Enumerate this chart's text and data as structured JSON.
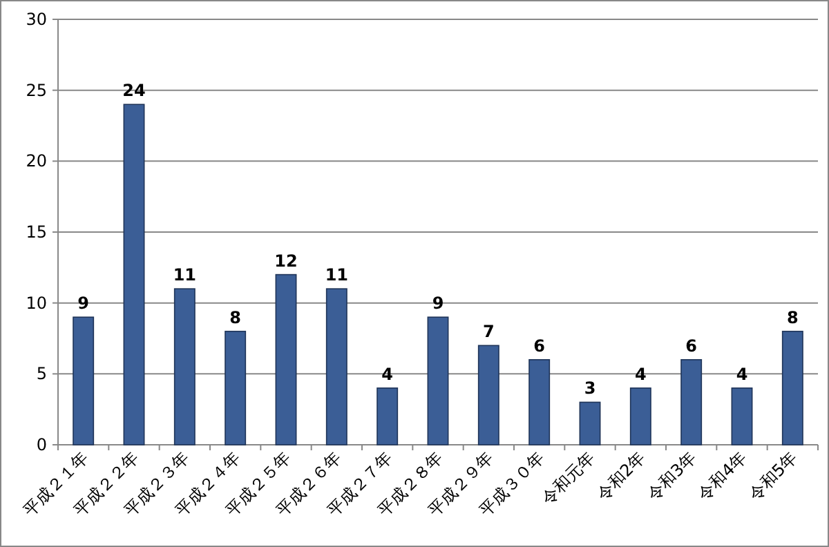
{
  "chart_data": {
    "type": "bar",
    "categories": [
      "平成２１年",
      "平成２２年",
      "平成２３年",
      "平成２４年",
      "平成２５年",
      "平成２６年",
      "平成２７年",
      "平成２８年",
      "平成２９年",
      "平成３０年",
      "令和元年",
      "令和2年",
      "令和3年",
      "令和4年",
      "令和5年"
    ],
    "values": [
      9,
      24,
      11,
      8,
      12,
      11,
      4,
      9,
      7,
      6,
      3,
      4,
      6,
      4,
      8
    ],
    "color": "#3b5e96",
    "ylim": [
      0,
      30
    ],
    "yticks": [
      0,
      5,
      10,
      15,
      20,
      25,
      30
    ],
    "grid": "y",
    "data_labels": true
  }
}
